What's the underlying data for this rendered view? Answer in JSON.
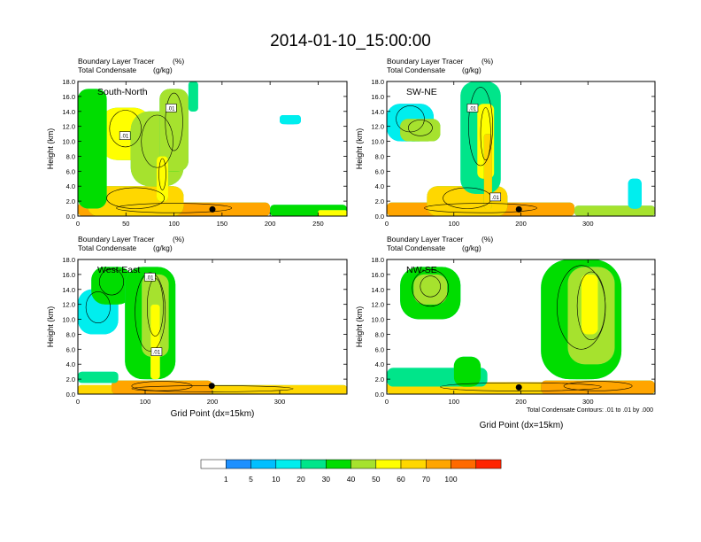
{
  "figure": {
    "title": "2014-01-10_15:00:00",
    "footnote": "Total Condensate Contours: .01 to .01 by .000",
    "x_axis_label": "Grid Point (dx=15km)"
  },
  "colorbar": {
    "boundaries": [
      "1",
      "5",
      "10",
      "20",
      "30",
      "40",
      "50",
      "60",
      "70",
      "100"
    ],
    "colors": [
      "#ffffff",
      "#1e90ff",
      "#00bfff",
      "#00eeee",
      "#00e58a",
      "#00dd00",
      "#a6e22e",
      "#ffff00",
      "#ffd700",
      "#ffa500",
      "#ff6a00",
      "#ff2400"
    ]
  },
  "chart_data": [
    {
      "type": "heatmap",
      "panel_label": "South-North",
      "left_title_1": "Boundary Layer Tracer",
      "unit_1": "(%)",
      "left_title_2": "Total Condensate",
      "unit_2": "(g/kg)",
      "ylabel": "Height (km)",
      "ylim": [
        0,
        18
      ],
      "yticks": [
        "0.0",
        "2.0",
        "4.0",
        "6.0",
        "8.0",
        "10.0",
        "12.0",
        "14.0",
        "16.0",
        "18.0"
      ],
      "xlim": [
        0,
        280
      ],
      "xticks": [
        0,
        50,
        100,
        150,
        200,
        250
      ],
      "contour_labels": [
        {
          "text": ".01",
          "x": 97,
          "y": 14.4
        },
        {
          "text": ".01",
          "x": 49,
          "y": 10.7
        }
      ],
      "marker": {
        "x": 140,
        "y": 0.9
      },
      "blobs": [
        {
          "x": 0,
          "w": 200,
          "y": 0,
          "h": 1.8,
          "v": 70
        },
        {
          "x": 10,
          "w": 100,
          "y": 0,
          "h": 4,
          "v": 62
        },
        {
          "x": 22,
          "w": 55,
          "y": 7.5,
          "h": 7,
          "v": 55
        },
        {
          "x": 55,
          "w": 55,
          "y": 4,
          "h": 10,
          "v": 46
        },
        {
          "x": 85,
          "w": 30,
          "y": 6,
          "h": 11,
          "v": 40
        },
        {
          "x": 82,
          "w": 12,
          "y": 2,
          "h": 6,
          "v": 58
        },
        {
          "x": 0,
          "w": 30,
          "y": 1,
          "h": 16,
          "v": 30
        },
        {
          "x": 115,
          "w": 10,
          "y": 14,
          "h": 4,
          "v": 22
        },
        {
          "x": 200,
          "w": 80,
          "y": 0,
          "h": 1.5,
          "v": 33
        },
        {
          "x": 250,
          "w": 30,
          "y": 0,
          "h": 0.8,
          "v": 55
        },
        {
          "x": 210,
          "w": 22,
          "y": 12.3,
          "h": 1.2,
          "v": 10
        }
      ]
    },
    {
      "type": "heatmap",
      "panel_label": "SW-NE",
      "left_title_1": "Boundary Layer Tracer",
      "unit_1": "(%)",
      "left_title_2": "Total Condensate",
      "unit_2": "(g/kg)",
      "ylabel": "Height (km)",
      "ylim": [
        0,
        18
      ],
      "yticks": [
        "0.0",
        "2.0",
        "4.0",
        "6.0",
        "8.0",
        "10.0",
        "12.0",
        "14.0",
        "16.0",
        "18.0"
      ],
      "xlim": [
        0,
        400
      ],
      "xticks": [
        0,
        100,
        200,
        300
      ],
      "contour_labels": [
        {
          "text": ".01",
          "x": 128,
          "y": 14.4
        },
        {
          "text": ".01",
          "x": 162,
          "y": 2.5
        }
      ],
      "marker": {
        "x": 197,
        "y": 0.9
      },
      "blobs": [
        {
          "x": 0,
          "w": 280,
          "y": 0,
          "h": 1.8,
          "v": 70
        },
        {
          "x": 60,
          "w": 120,
          "y": 0,
          "h": 4,
          "v": 60
        },
        {
          "x": 0,
          "w": 70,
          "y": 10,
          "h": 5,
          "v": 18
        },
        {
          "x": 20,
          "w": 60,
          "y": 10,
          "h": 3,
          "v": 40
        },
        {
          "x": 110,
          "w": 60,
          "y": 3,
          "h": 15,
          "v": 28
        },
        {
          "x": 135,
          "w": 25,
          "y": 5,
          "h": 10,
          "v": 52
        },
        {
          "x": 145,
          "w": 12,
          "y": 1,
          "h": 10,
          "v": 64
        },
        {
          "x": 280,
          "w": 120,
          "y": 0,
          "h": 1.4,
          "v": 44
        },
        {
          "x": 360,
          "w": 20,
          "y": 1,
          "h": 4,
          "v": 18
        }
      ]
    },
    {
      "type": "heatmap",
      "panel_label": "West-East",
      "left_title_1": "Boundary Layer Tracer",
      "unit_1": "(%)",
      "left_title_2": "Total Condensate",
      "unit_2": "(g/kg)",
      "ylabel": "Height (km)",
      "ylim": [
        0,
        18
      ],
      "yticks": [
        "0.0",
        "2.0",
        "4.0",
        "6.0",
        "8.0",
        "10.0",
        "12.0",
        "14.0",
        "16.0",
        "18.0"
      ],
      "xlim": [
        0,
        400
      ],
      "xticks": [
        0,
        100,
        200,
        300
      ],
      "contour_labels": [
        {
          "text": ".01",
          "x": 107,
          "y": 15.6
        },
        {
          "text": ".01",
          "x": 117,
          "y": 5.6
        }
      ],
      "marker": {
        "x": 199,
        "y": 1.1
      },
      "blobs": [
        {
          "x": 0,
          "w": 400,
          "y": 0,
          "h": 1.2,
          "v": 62
        },
        {
          "x": 50,
          "w": 150,
          "y": 0,
          "h": 1.8,
          "v": 72
        },
        {
          "x": 0,
          "w": 60,
          "y": 8,
          "h": 6,
          "v": 18
        },
        {
          "x": 20,
          "w": 60,
          "y": 12,
          "h": 5,
          "v": 34
        },
        {
          "x": 70,
          "w": 75,
          "y": 2,
          "h": 15,
          "v": 32
        },
        {
          "x": 95,
          "w": 40,
          "y": 5,
          "h": 11,
          "v": 48
        },
        {
          "x": 108,
          "w": 14,
          "y": 2,
          "h": 10,
          "v": 56
        },
        {
          "x": 0,
          "w": 60,
          "y": 1.5,
          "h": 1.5,
          "v": 25
        }
      ]
    },
    {
      "type": "heatmap",
      "panel_label": "NW-SE",
      "left_title_1": "Boundary Layer Tracer",
      "unit_1": "(%)",
      "left_title_2": "Total Condensate",
      "unit_2": "(g/kg)",
      "ylabel": "Height (km)",
      "ylim": [
        0,
        18
      ],
      "yticks": [
        "0.0",
        "2.0",
        "4.0",
        "6.0",
        "8.0",
        "10.0",
        "12.0",
        "14.0",
        "16.0",
        "18.0"
      ],
      "xlim": [
        0,
        400
      ],
      "xticks": [
        0,
        100,
        200,
        300
      ],
      "contour_labels": [],
      "marker": {
        "x": 197,
        "y": 0.9
      },
      "blobs": [
        {
          "x": 0,
          "w": 400,
          "y": 0,
          "h": 1.6,
          "v": 65
        },
        {
          "x": 230,
          "w": 170,
          "y": 0,
          "h": 1.8,
          "v": 72
        },
        {
          "x": 20,
          "w": 90,
          "y": 10,
          "h": 7,
          "v": 30
        },
        {
          "x": 40,
          "w": 50,
          "y": 12,
          "h": 4,
          "v": 46
        },
        {
          "x": 230,
          "w": 120,
          "y": 2,
          "h": 16,
          "v": 33
        },
        {
          "x": 270,
          "w": 70,
          "y": 4,
          "h": 13,
          "v": 46
        },
        {
          "x": 290,
          "w": 25,
          "y": 8,
          "h": 8,
          "v": 56
        },
        {
          "x": 0,
          "w": 150,
          "y": 1,
          "h": 2.5,
          "v": 20
        },
        {
          "x": 100,
          "w": 40,
          "y": 1,
          "h": 4,
          "v": 30
        }
      ]
    }
  ]
}
